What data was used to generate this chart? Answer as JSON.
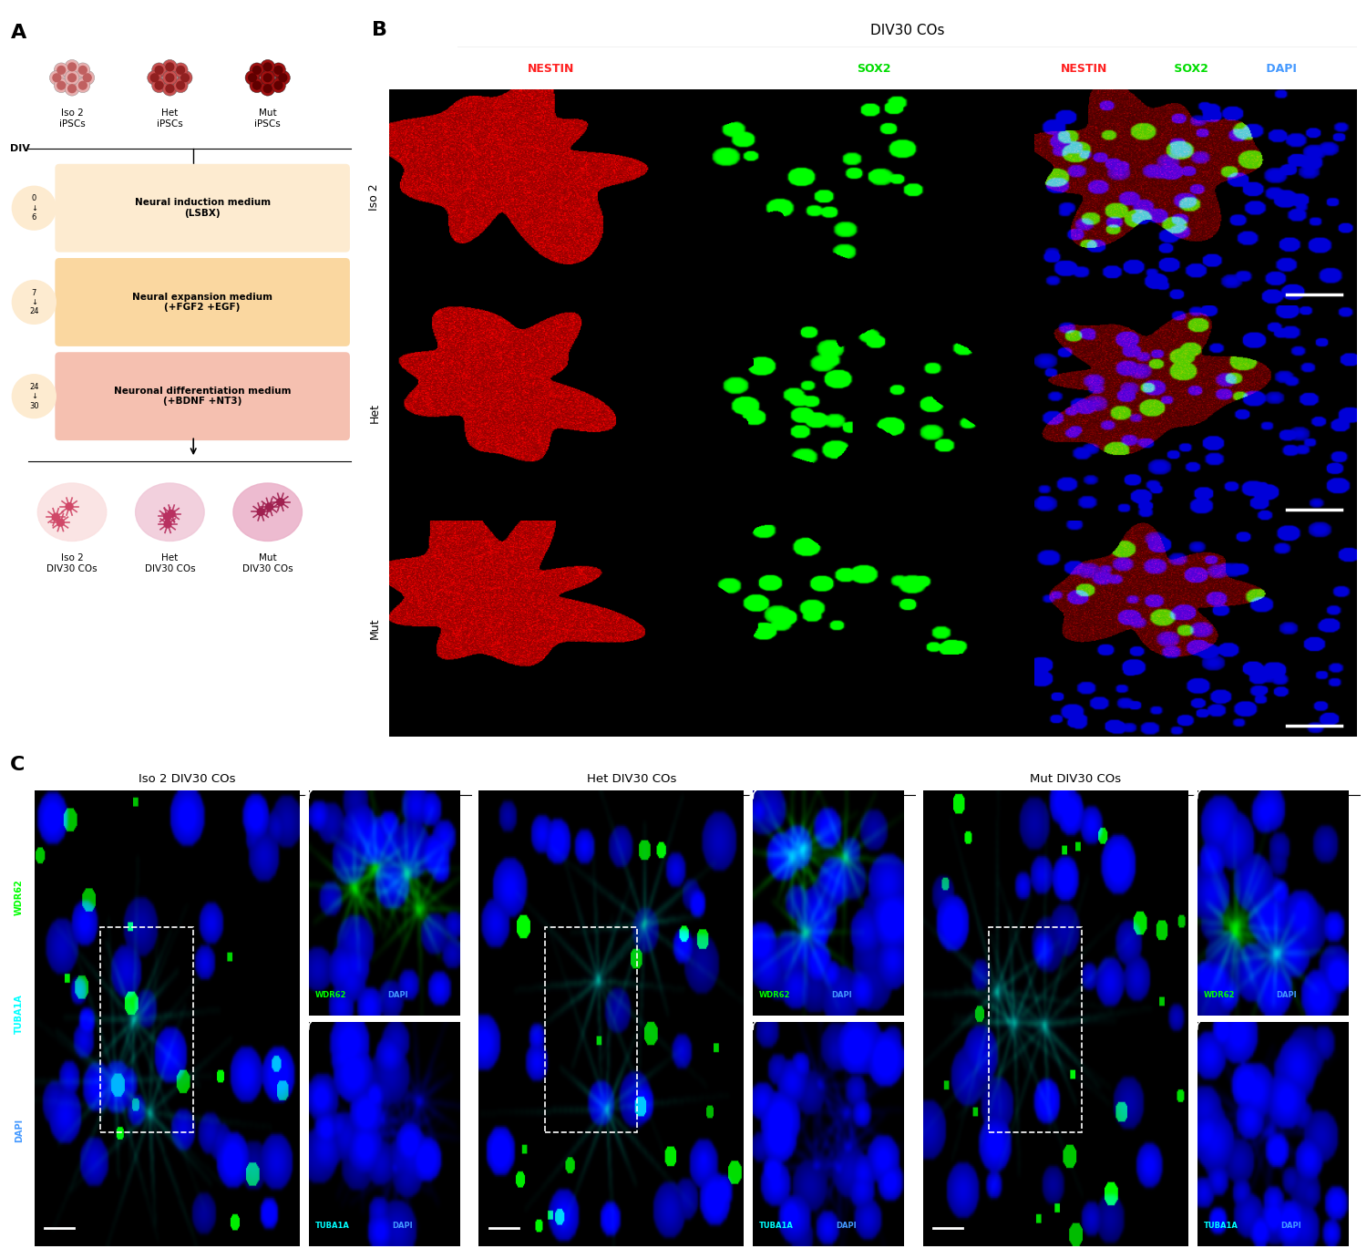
{
  "fig_width": 15.0,
  "fig_height": 13.81,
  "bg_color": "#ffffff",
  "panel_A": {
    "label": "A",
    "ipsc_labels": [
      "Iso 2\niPSCs",
      "Het\niPSCs",
      "Mut\niPSCs"
    ],
    "div_label": "DIV",
    "box1_color": "#FDEBD0",
    "box2_color": "#FAD7A0",
    "box3_color": "#F5C0B0",
    "box1_text": "Neural induction medium\n(LSBX)",
    "box2_text": "Neural expansion medium\n(+FGF2 +EGF)",
    "box3_text": "Neuronal differentiation medium\n(+BDNF +NT3)",
    "div1": "0\n↓\n6",
    "div2": "7\n↓\n24",
    "div3": "24\n↓\n30",
    "organoid_labels": [
      "Iso 2\nDIV30 COs",
      "Het\nDIV30 COs",
      "Mut\nDIV30 COs"
    ]
  },
  "panel_B": {
    "label": "B",
    "title": "DIV30 COs",
    "col1_label": "NESTIN",
    "col1_color": "#FF2020",
    "col2_label": "SOX2",
    "col2_color": "#00DD00",
    "col3_label1": "NESTIN",
    "col3_label2": " SOX2",
    "col3_label3": " DAPI",
    "col3_color1": "#FF2020",
    "col3_color2": "#00DD00",
    "col3_color3": "#4499FF",
    "row_labels": [
      "Iso 2",
      "Het",
      "Mut"
    ]
  },
  "panel_C": {
    "label": "C",
    "vert_label1": "WDR62",
    "vert_label2": "TUBA1A",
    "vert_label3": "DAPI",
    "vert_color1": "#00FF00",
    "vert_color2": "#00FFFF",
    "vert_color3": "#4499FF",
    "group_labels": [
      "Iso 2 DIV30 COs",
      "Het DIV30 COs",
      "Mut DIV30 COs"
    ],
    "inset1_label1": "WDR62",
    "inset1_label2": "DAPI",
    "inset1_color1": "#00FF00",
    "inset1_color2": "#4499FF",
    "inset2_label1": "TUBA1A",
    "inset2_label2": "DAPI",
    "inset2_color1": "#00FFFF",
    "inset2_color2": "#4499FF"
  }
}
